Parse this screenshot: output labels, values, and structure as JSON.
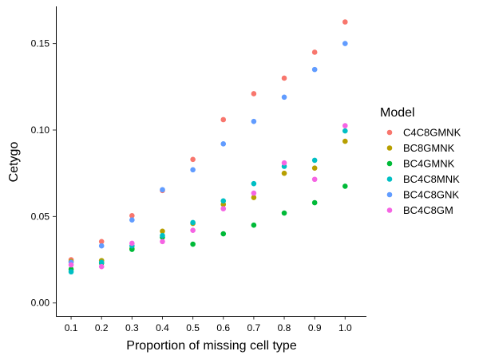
{
  "chart_data": {
    "type": "scatter",
    "title": "",
    "xlabel": "Proportion of missing cell type",
    "ylabel": "Cetygo",
    "x": [
      0.1,
      0.2,
      0.3,
      0.4,
      0.5,
      0.6,
      0.7,
      0.8,
      0.9,
      1.0
    ],
    "x_tick_labels": [
      "0.1",
      "0.2",
      "0.3",
      "0.4",
      "0.5",
      "0.6",
      "0.7",
      "0.8",
      "0.9",
      "1.0"
    ],
    "y_ticks": [
      0.0,
      0.05,
      0.1,
      0.15
    ],
    "y_tick_labels": [
      "0.00",
      "0.05",
      "0.10",
      "0.15"
    ],
    "xlim": [
      0.05,
      1.07
    ],
    "ylim": [
      -0.0075,
      0.1715
    ],
    "grid": false,
    "legend": {
      "title": "Model",
      "position": "right"
    },
    "series": [
      {
        "name": "C4C8GMNK",
        "color": "#F8766D",
        "values": [
          0.025,
          0.0355,
          0.0505,
          0.065,
          0.083,
          0.106,
          0.121,
          0.13,
          0.145,
          0.1625
        ]
      },
      {
        "name": "BC8GMNK",
        "color": "#B79F00",
        "values": [
          0.024,
          0.0245,
          0.0315,
          0.0415,
          0.046,
          0.057,
          0.061,
          0.075,
          0.078,
          0.0935
        ]
      },
      {
        "name": "BC4GMNK",
        "color": "#00BA38",
        "values": [
          0.0195,
          0.023,
          0.031,
          0.038,
          0.034,
          0.04,
          0.045,
          0.052,
          0.058,
          0.0675
        ]
      },
      {
        "name": "BC4C8MNK",
        "color": "#00BFC4",
        "values": [
          0.018,
          0.0235,
          0.033,
          0.039,
          0.0465,
          0.059,
          0.069,
          0.079,
          0.0825,
          0.0995
        ]
      },
      {
        "name": "BC4C8GNK",
        "color": "#619CFF",
        "values": [
          0.0235,
          0.033,
          0.048,
          0.0655,
          0.077,
          0.092,
          0.105,
          0.119,
          0.135,
          0.15
        ]
      },
      {
        "name": "BC4C8GM",
        "color": "#F564E3",
        "values": [
          0.022,
          0.021,
          0.0345,
          0.0355,
          0.042,
          0.0545,
          0.0635,
          0.081,
          0.0715,
          0.1025
        ]
      }
    ]
  }
}
